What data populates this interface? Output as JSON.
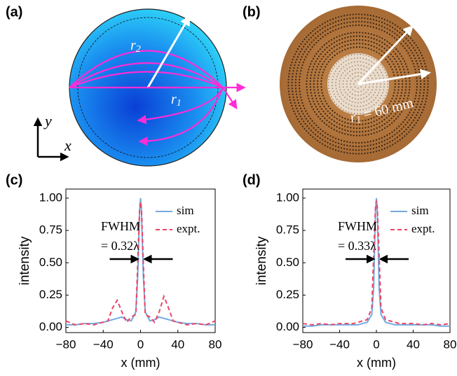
{
  "panel_a": {
    "label": "(a)",
    "r_outer": {
      "text": "r",
      "sub": "2"
    },
    "r_inner": {
      "text": "r",
      "sub": "1"
    },
    "axis_y": "y",
    "axis_x": "x"
  },
  "panel_b": {
    "label": "(b)",
    "radius": {
      "text": "r",
      "sub": "1",
      "rest": " = 60 mm"
    }
  },
  "chart_data": [
    {
      "type": "line",
      "panel_label": "(c)",
      "x_label": "x (mm)",
      "y_label": "intensity",
      "annotation": [
        "FWHM",
        "= 0.32λ"
      ],
      "legend": "upper right",
      "x": [
        -80,
        -70,
        -60,
        -50,
        -40,
        -35,
        -30,
        -25,
        -20,
        -15,
        -10,
        -5,
        -3,
        -1,
        0,
        1,
        3,
        5,
        10,
        15,
        20,
        25,
        30,
        35,
        40,
        50,
        60,
        70,
        80
      ],
      "series": [
        {
          "name": "sim",
          "color": "#74a9e0",
          "style": "solid",
          "values": [
            0.02,
            0.02,
            0.03,
            0.03,
            0.04,
            0.05,
            0.06,
            0.07,
            0.08,
            0.06,
            0.05,
            0.12,
            0.4,
            0.9,
            1.0,
            0.9,
            0.4,
            0.12,
            0.05,
            0.06,
            0.08,
            0.07,
            0.06,
            0.05,
            0.04,
            0.03,
            0.03,
            0.02,
            0.02
          ]
        },
        {
          "name": "expt.",
          "color": "#ec4565",
          "style": "dashed",
          "values": [
            0.05,
            0.02,
            0.03,
            0.02,
            0.04,
            0.05,
            0.15,
            0.21,
            0.12,
            0.04,
            0.08,
            0.1,
            0.5,
            0.92,
            0.97,
            0.92,
            0.5,
            0.1,
            0.08,
            0.04,
            0.12,
            0.24,
            0.15,
            0.05,
            0.04,
            0.02,
            0.03,
            0.02,
            0.05
          ]
        }
      ],
      "xlim": [
        -80,
        80
      ],
      "ylim": [
        -0.04,
        1.07
      ],
      "xticks": [
        {
          "value": -80,
          "label": "−80"
        },
        {
          "value": -40,
          "label": "−40"
        },
        0,
        40,
        80
      ],
      "yticks": [
        {
          "value": 0,
          "label": "0.00"
        },
        {
          "value": 0.25,
          "label": "0.25"
        },
        {
          "value": 0.5,
          "label": "0.50"
        },
        {
          "value": 0.75,
          "label": "0.75"
        },
        {
          "value": 1,
          "label": "1.00"
        }
      ]
    },
    {
      "type": "line",
      "panel_label": "(d)",
      "x_label": "x (mm)",
      "y_label": "intensity",
      "annotation": [
        "FWHM",
        "= 0.33λ"
      ],
      "legend": "upper right",
      "x": [
        -80,
        -70,
        -60,
        -50,
        -40,
        -35,
        -30,
        -25,
        -20,
        -15,
        -10,
        -5,
        -3,
        -1,
        0,
        1,
        3,
        5,
        10,
        15,
        20,
        25,
        30,
        35,
        40,
        50,
        60,
        70,
        80
      ],
      "series": [
        {
          "name": "sim",
          "color": "#74a9e0",
          "style": "solid",
          "values": [
            0.01,
            0.01,
            0.02,
            0.02,
            0.02,
            0.02,
            0.02,
            0.02,
            0.02,
            0.03,
            0.04,
            0.1,
            0.3,
            0.9,
            1.0,
            0.9,
            0.3,
            0.1,
            0.04,
            0.03,
            0.02,
            0.02,
            0.02,
            0.02,
            0.02,
            0.02,
            0.02,
            0.01,
            0.01
          ]
        },
        {
          "name": "expt.",
          "color": "#ec4565",
          "style": "dashed",
          "values": [
            0.03,
            0.02,
            0.03,
            0.02,
            0.03,
            0.03,
            0.03,
            0.03,
            0.04,
            0.05,
            0.06,
            0.15,
            0.55,
            0.93,
            0.98,
            0.93,
            0.55,
            0.15,
            0.06,
            0.05,
            0.04,
            0.03,
            0.03,
            0.03,
            0.03,
            0.02,
            0.03,
            0.02,
            0.03
          ]
        }
      ],
      "xlim": [
        -80,
        80
      ],
      "ylim": [
        -0.04,
        1.07
      ],
      "xticks": [
        {
          "value": -80,
          "label": "−80"
        },
        {
          "value": -40,
          "label": "−40"
        },
        0,
        40,
        80
      ],
      "yticks": [
        {
          "value": 0,
          "label": "0.00"
        },
        {
          "value": 0.25,
          "label": "0.25"
        },
        {
          "value": 0.5,
          "label": "0.50"
        },
        {
          "value": 0.75,
          "label": "0.75"
        },
        {
          "value": 1,
          "label": "1.00"
        }
      ]
    }
  ]
}
